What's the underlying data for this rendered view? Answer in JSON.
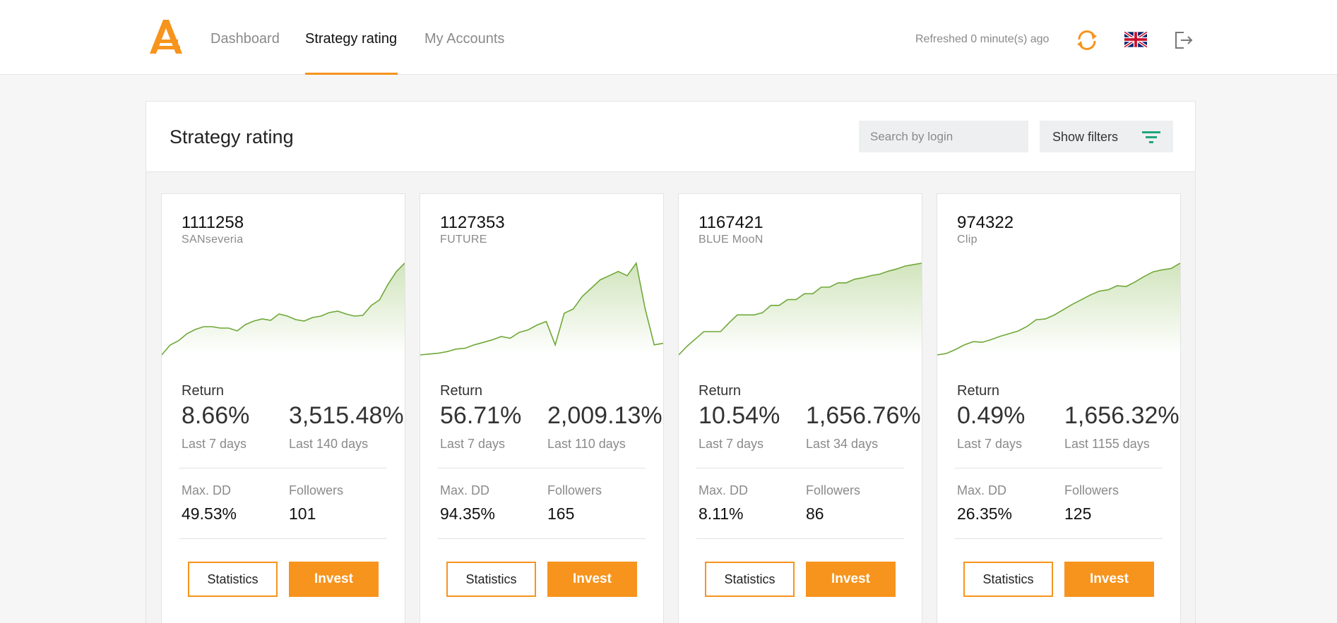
{
  "header": {
    "nav": [
      {
        "label": "Dashboard"
      },
      {
        "label": "Strategy rating"
      },
      {
        "label": "My Accounts"
      }
    ],
    "refreshed": "Refreshed 0 minute(s) ago",
    "accent_color": "#f7941d",
    "icons": [
      "logo",
      "refresh-icon",
      "uk-flag-icon",
      "logout-icon"
    ]
  },
  "page": {
    "title": "Strategy rating",
    "search_placeholder": "Search by login",
    "filters_label": "Show filters"
  },
  "labels": {
    "return": "Return",
    "max_dd": "Max. DD",
    "followers": "Followers",
    "statistics": "Statistics",
    "invest": "Invest"
  },
  "cards": [
    {
      "login": "1111258",
      "name": "SANseveria",
      "return_7": "8.66%",
      "return_period": "3,515.48%",
      "label_7": "Last 7 days",
      "label_period": "Last 140 days",
      "max_dd": "49.53%",
      "followers": "101",
      "equity_series": [
        0,
        14,
        20,
        30,
        36,
        40,
        40,
        38,
        38,
        34,
        43,
        48,
        51,
        49,
        58,
        55,
        50,
        48,
        53,
        55,
        60,
        62,
        58,
        55,
        56,
        70,
        78,
        100,
        118,
        130
      ]
    },
    {
      "login": "1127353",
      "name": "FUTURE",
      "return_7": "56.71%",
      "return_period": "2,009.13%",
      "label_7": "Last 7 days",
      "label_period": "Last 110 days",
      "max_dd": "94.35%",
      "followers": "165",
      "equity_series": [
        0,
        1,
        2,
        4,
        7,
        8,
        12,
        15,
        18,
        22,
        20,
        27,
        30,
        36,
        40,
        12,
        50,
        55,
        70,
        80,
        90,
        95,
        100,
        95,
        110,
        55,
        12,
        14
      ]
    },
    {
      "login": "1167421",
      "name": "BLUE MooN",
      "return_7": "10.54%",
      "return_period": "1,656.76%",
      "label_7": "Last 7 days",
      "label_period": "Last 34 days",
      "max_dd": "8.11%",
      "followers": "86",
      "equity_series": [
        0,
        12,
        22,
        32,
        32,
        32,
        44,
        55,
        55,
        55,
        58,
        68,
        68,
        76,
        76,
        84,
        84,
        93,
        93,
        99,
        99,
        104,
        106,
        109,
        111,
        115,
        118,
        122,
        124,
        126
      ]
    },
    {
      "login": "974322",
      "name": "Clip",
      "return_7": "0.49%",
      "return_period": "1,656.32%",
      "label_7": "Last 7 days",
      "label_period": "Last 1155 days",
      "max_dd": "26.35%",
      "followers": "125",
      "equity_series": [
        0,
        2,
        8,
        15,
        20,
        19,
        23,
        28,
        32,
        36,
        43,
        53,
        54,
        60,
        68,
        76,
        83,
        90,
        96,
        98,
        104,
        103,
        110,
        118,
        125,
        128,
        130,
        138
      ]
    }
  ]
}
